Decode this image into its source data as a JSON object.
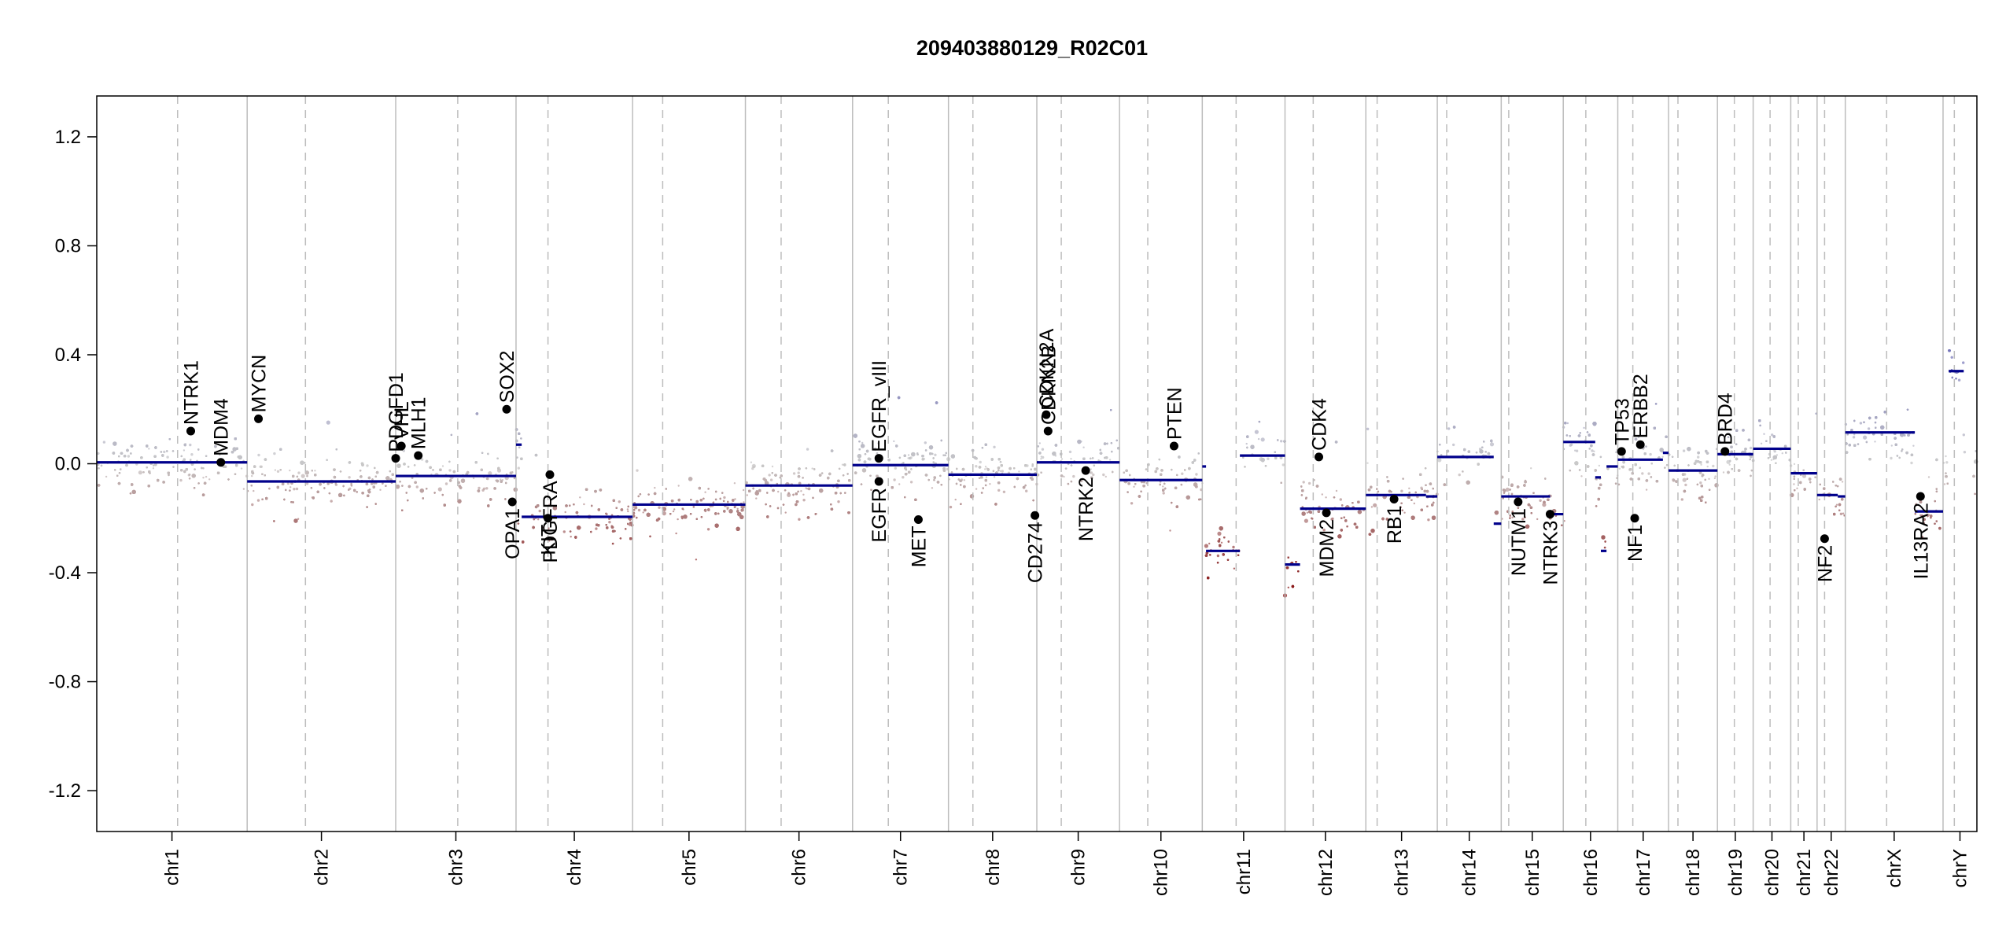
{
  "chart_data": {
    "type": "scatter",
    "title": "209403880129_R02C01",
    "xlabel": "",
    "ylabel": "",
    "ylim": [
      -1.35,
      1.35
    ],
    "yticks": [
      -1.2,
      -0.8,
      -0.4,
      0.0,
      0.4,
      0.8,
      1.2
    ],
    "ytick_labels": [
      "-1.2",
      "-0.8",
      "-0.4",
      "0.0",
      "0.4",
      "0.8",
      "1.2"
    ],
    "grid": false,
    "legend": "none",
    "colors": {
      "gain": "#8e8ec2",
      "neutral": "#c8c8c8",
      "loss": "#8b1a1a",
      "segment": "#00008b",
      "gene_point": "#000000",
      "chrom_boundary": "#bdbdbd",
      "centromere": "#bdbdbd"
    },
    "chromosomes": [
      {
        "name": "chr1",
        "start": 0.0,
        "end": 0.08,
        "centromere": 0.043
      },
      {
        "name": "chr2",
        "start": 0.08,
        "end": 0.159,
        "centromere": 0.111
      },
      {
        "name": "chr3",
        "start": 0.159,
        "end": 0.223,
        "centromere": 0.192
      },
      {
        "name": "chr4",
        "start": 0.223,
        "end": 0.285,
        "centromere": 0.24
      },
      {
        "name": "chr5",
        "start": 0.285,
        "end": 0.345,
        "centromere": 0.301
      },
      {
        "name": "chr6",
        "start": 0.345,
        "end": 0.402,
        "centromere": 0.364
      },
      {
        "name": "chr7",
        "start": 0.402,
        "end": 0.453,
        "centromere": 0.421
      },
      {
        "name": "chr8",
        "start": 0.453,
        "end": 0.5,
        "centromere": 0.466
      },
      {
        "name": "chr9",
        "start": 0.5,
        "end": 0.544,
        "centromere": 0.513
      },
      {
        "name": "chr10",
        "start": 0.544,
        "end": 0.588,
        "centromere": 0.559
      },
      {
        "name": "chr11",
        "start": 0.588,
        "end": 0.632,
        "centromere": 0.606
      },
      {
        "name": "chr12",
        "start": 0.632,
        "end": 0.675,
        "centromere": 0.647
      },
      {
        "name": "chr13",
        "start": 0.675,
        "end": 0.713,
        "centromere": 0.681
      },
      {
        "name": "chr14",
        "start": 0.713,
        "end": 0.747,
        "centromere": 0.718
      },
      {
        "name": "chr15",
        "start": 0.747,
        "end": 0.78,
        "centromere": 0.751
      },
      {
        "name": "chr16",
        "start": 0.78,
        "end": 0.809,
        "centromere": 0.792
      },
      {
        "name": "chr17",
        "start": 0.809,
        "end": 0.836,
        "centromere": 0.817
      },
      {
        "name": "chr18",
        "start": 0.836,
        "end": 0.862,
        "centromere": 0.841
      },
      {
        "name": "chr19",
        "start": 0.862,
        "end": 0.881,
        "centromere": 0.871
      },
      {
        "name": "chr20",
        "start": 0.881,
        "end": 0.901,
        "centromere": 0.89
      },
      {
        "name": "chr21",
        "start": 0.901,
        "end": 0.915,
        "centromere": 0.905
      },
      {
        "name": "chr22",
        "start": 0.915,
        "end": 0.93,
        "centromere": 0.919
      },
      {
        "name": "chrX",
        "start": 0.93,
        "end": 0.982,
        "centromere": 0.952
      },
      {
        "name": "chrY",
        "start": 0.982,
        "end": 1.0,
        "centromere": 0.988
      }
    ],
    "segments": [
      {
        "x0": 0.0,
        "x1": 0.08,
        "y": 0.005
      },
      {
        "x0": 0.08,
        "x1": 0.159,
        "y": -0.065
      },
      {
        "x0": 0.159,
        "x1": 0.223,
        "y": -0.045
      },
      {
        "x0": 0.223,
        "x1": 0.226,
        "y": 0.07
      },
      {
        "x0": 0.226,
        "x1": 0.285,
        "y": -0.195
      },
      {
        "x0": 0.285,
        "x1": 0.345,
        "y": -0.15
      },
      {
        "x0": 0.345,
        "x1": 0.402,
        "y": -0.08
      },
      {
        "x0": 0.402,
        "x1": 0.453,
        "y": -0.005
      },
      {
        "x0": 0.453,
        "x1": 0.5,
        "y": -0.04
      },
      {
        "x0": 0.5,
        "x1": 0.544,
        "y": 0.005
      },
      {
        "x0": 0.544,
        "x1": 0.588,
        "y": -0.06
      },
      {
        "x0": 0.588,
        "x1": 0.59,
        "y": -0.01
      },
      {
        "x0": 0.59,
        "x1": 0.608,
        "y": -0.32
      },
      {
        "x0": 0.608,
        "x1": 0.632,
        "y": 0.03
      },
      {
        "x0": 0.632,
        "x1": 0.64,
        "y": -0.37
      },
      {
        "x0": 0.64,
        "x1": 0.675,
        "y": -0.165
      },
      {
        "x0": 0.675,
        "x1": 0.707,
        "y": -0.115
      },
      {
        "x0": 0.707,
        "x1": 0.713,
        "y": -0.12
      },
      {
        "x0": 0.713,
        "x1": 0.743,
        "y": 0.025
      },
      {
        "x0": 0.743,
        "x1": 0.747,
        "y": -0.22
      },
      {
        "x0": 0.747,
        "x1": 0.773,
        "y": -0.12
      },
      {
        "x0": 0.773,
        "x1": 0.78,
        "y": -0.185
      },
      {
        "x0": 0.78,
        "x1": 0.797,
        "y": 0.08
      },
      {
        "x0": 0.797,
        "x1": 0.8,
        "y": -0.05
      },
      {
        "x0": 0.8,
        "x1": 0.803,
        "y": -0.32
      },
      {
        "x0": 0.803,
        "x1": 0.809,
        "y": -0.01
      },
      {
        "x0": 0.809,
        "x1": 0.833,
        "y": 0.015
      },
      {
        "x0": 0.833,
        "x1": 0.836,
        "y": 0.04
      },
      {
        "x0": 0.836,
        "x1": 0.862,
        "y": -0.025
      },
      {
        "x0": 0.862,
        "x1": 0.881,
        "y": 0.035
      },
      {
        "x0": 0.881,
        "x1": 0.901,
        "y": 0.055
      },
      {
        "x0": 0.901,
        "x1": 0.915,
        "y": -0.035
      },
      {
        "x0": 0.915,
        "x1": 0.926,
        "y": -0.115
      },
      {
        "x0": 0.926,
        "x1": 0.93,
        "y": -0.12
      },
      {
        "x0": 0.93,
        "x1": 0.967,
        "y": 0.115
      },
      {
        "x0": 0.967,
        "x1": 0.982,
        "y": -0.175
      },
      {
        "x0": 0.985,
        "x1": 0.993,
        "y": 0.34
      }
    ],
    "genes": [
      {
        "name": "NTRK1",
        "x": 0.05,
        "y": 0.12,
        "label_side": "above"
      },
      {
        "name": "MDM4",
        "x": 0.066,
        "y": 0.005,
        "label_side": "above"
      },
      {
        "name": "MYCN",
        "x": 0.086,
        "y": 0.165,
        "label_side": "above"
      },
      {
        "name": "PDGFD1",
        "x": 0.159,
        "y": 0.02,
        "label_side": "above"
      },
      {
        "name": "VHL",
        "x": 0.162,
        "y": 0.065,
        "label_side": "above"
      },
      {
        "name": "MLH1",
        "x": 0.171,
        "y": 0.03,
        "label_side": "above"
      },
      {
        "name": "SOX2",
        "x": 0.218,
        "y": 0.2,
        "label_side": "above"
      },
      {
        "name": "OPA1",
        "x": 0.221,
        "y": -0.14,
        "label_side": "below"
      },
      {
        "name": "KIT",
        "x": 0.24,
        "y": -0.2,
        "label_side": "below"
      },
      {
        "name": "PDGFRA",
        "x": 0.241,
        "y": -0.04,
        "label_side": "below"
      },
      {
        "name": "EGFR_vIII",
        "x": 0.416,
        "y": 0.02,
        "label_side": "above"
      },
      {
        "name": "EGFR",
        "x": 0.416,
        "y": -0.065,
        "label_side": "below"
      },
      {
        "name": "MET",
        "x": 0.437,
        "y": -0.205,
        "label_side": "below"
      },
      {
        "name": "CDKN2A",
        "x": 0.505,
        "y": 0.18,
        "label_side": "above"
      },
      {
        "name": "CDKN2B",
        "x": 0.506,
        "y": 0.12,
        "label_side": "above"
      },
      {
        "name": "CD274",
        "x": 0.499,
        "y": -0.19,
        "label_side": "below"
      },
      {
        "name": "NTRK2",
        "x": 0.526,
        "y": -0.025,
        "label_side": "below"
      },
      {
        "name": "PTEN",
        "x": 0.573,
        "y": 0.065,
        "label_side": "above"
      },
      {
        "name": "CDK4",
        "x": 0.65,
        "y": 0.025,
        "label_side": "above"
      },
      {
        "name": "MDM2",
        "x": 0.654,
        "y": -0.18,
        "label_side": "below"
      },
      {
        "name": "RB1",
        "x": 0.69,
        "y": -0.13,
        "label_side": "below"
      },
      {
        "name": "NUTM1",
        "x": 0.756,
        "y": -0.14,
        "label_side": "below"
      },
      {
        "name": "NTRK3",
        "x": 0.773,
        "y": -0.185,
        "label_side": "below"
      },
      {
        "name": "TP53",
        "x": 0.811,
        "y": 0.045,
        "label_side": "above"
      },
      {
        "name": "ERBB2",
        "x": 0.821,
        "y": 0.07,
        "label_side": "above"
      },
      {
        "name": "NF1",
        "x": 0.818,
        "y": -0.2,
        "label_side": "below"
      },
      {
        "name": "BRD4",
        "x": 0.866,
        "y": 0.045,
        "label_side": "above"
      },
      {
        "name": "NF2",
        "x": 0.919,
        "y": -0.275,
        "label_side": "below"
      },
      {
        "name": "IL13RA2",
        "x": 0.97,
        "y": -0.12,
        "label_side": "below"
      }
    ]
  }
}
